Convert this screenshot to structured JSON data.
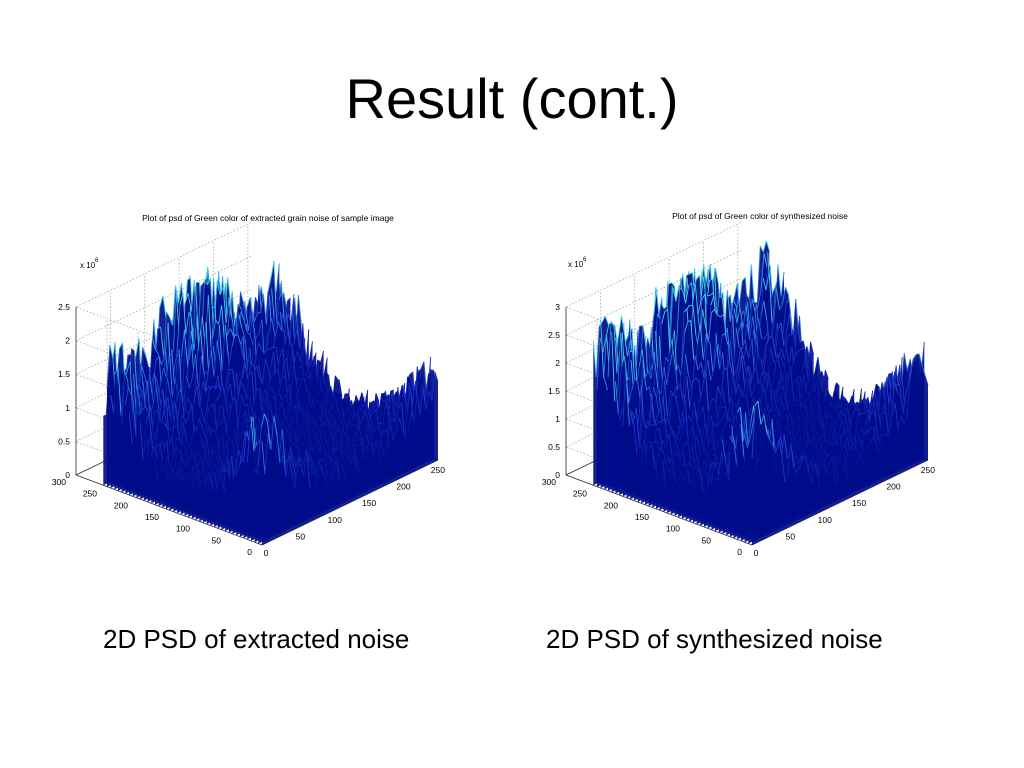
{
  "slide": {
    "title": "Result (cont.)",
    "caption_left": "2D PSD of extracted noise",
    "caption_right": "2D PSD of synthesized noise"
  },
  "colors": {
    "surface_dark": "#000c8a",
    "surface_mid": "#1f3ad0",
    "surface_light": "#3fd0e8",
    "grid": "#9a9a9a",
    "axis": "#333333"
  },
  "chart_data": [
    {
      "type": "surface",
      "title": "Plot of psd of Green color of extracted grain noise of sample image",
      "z_multiplier": "x 10",
      "z_exponent": "6",
      "z_ticks": [
        "0",
        "0.5",
        "1",
        "1.5",
        "2",
        "2.5"
      ],
      "zlim": [
        0,
        2.5
      ],
      "x_ticks": [
        "0",
        "50",
        "100",
        "150",
        "200",
        "250"
      ],
      "xlim": [
        0,
        256
      ],
      "y_ticks": [
        "0",
        "50",
        "100",
        "150",
        "200",
        "250",
        "300"
      ],
      "ylim": [
        0,
        300
      ],
      "grid": true,
      "peaks": [
        {
          "x": 0,
          "y": 256,
          "z": 1.3
        },
        {
          "x": 0,
          "y": 0,
          "z": 1.2
        },
        {
          "x": 128,
          "y": 256,
          "z": 2.0
        },
        {
          "x": 256,
          "y": 256,
          "z": 1.3
        },
        {
          "x": 256,
          "y": 0,
          "z": 0.8
        }
      ],
      "ridge_width": 45,
      "base_level": 0.25
    },
    {
      "type": "surface",
      "title": "Plot of psd of Green color of synthesized noise",
      "z_multiplier": "x 10",
      "z_exponent": "6",
      "z_ticks": [
        "0",
        "0.5",
        "1",
        "1.5",
        "2",
        "2.5",
        "3"
      ],
      "zlim": [
        0,
        3
      ],
      "x_ticks": [
        "0",
        "50",
        "100",
        "150",
        "200",
        "250"
      ],
      "xlim": [
        0,
        256
      ],
      "y_ticks": [
        "0",
        "50",
        "100",
        "150",
        "200",
        "250",
        "300"
      ],
      "ylim": [
        0,
        300
      ],
      "grid": true,
      "peaks": [
        {
          "x": 0,
          "y": 256,
          "z": 2.2
        },
        {
          "x": 0,
          "y": 0,
          "z": 1.6
        },
        {
          "x": 128,
          "y": 256,
          "z": 2.6
        },
        {
          "x": 256,
          "y": 256,
          "z": 1.9
        },
        {
          "x": 256,
          "y": 0,
          "z": 1.2
        }
      ],
      "ridge_width": 45,
      "base_level": 0.3
    }
  ]
}
